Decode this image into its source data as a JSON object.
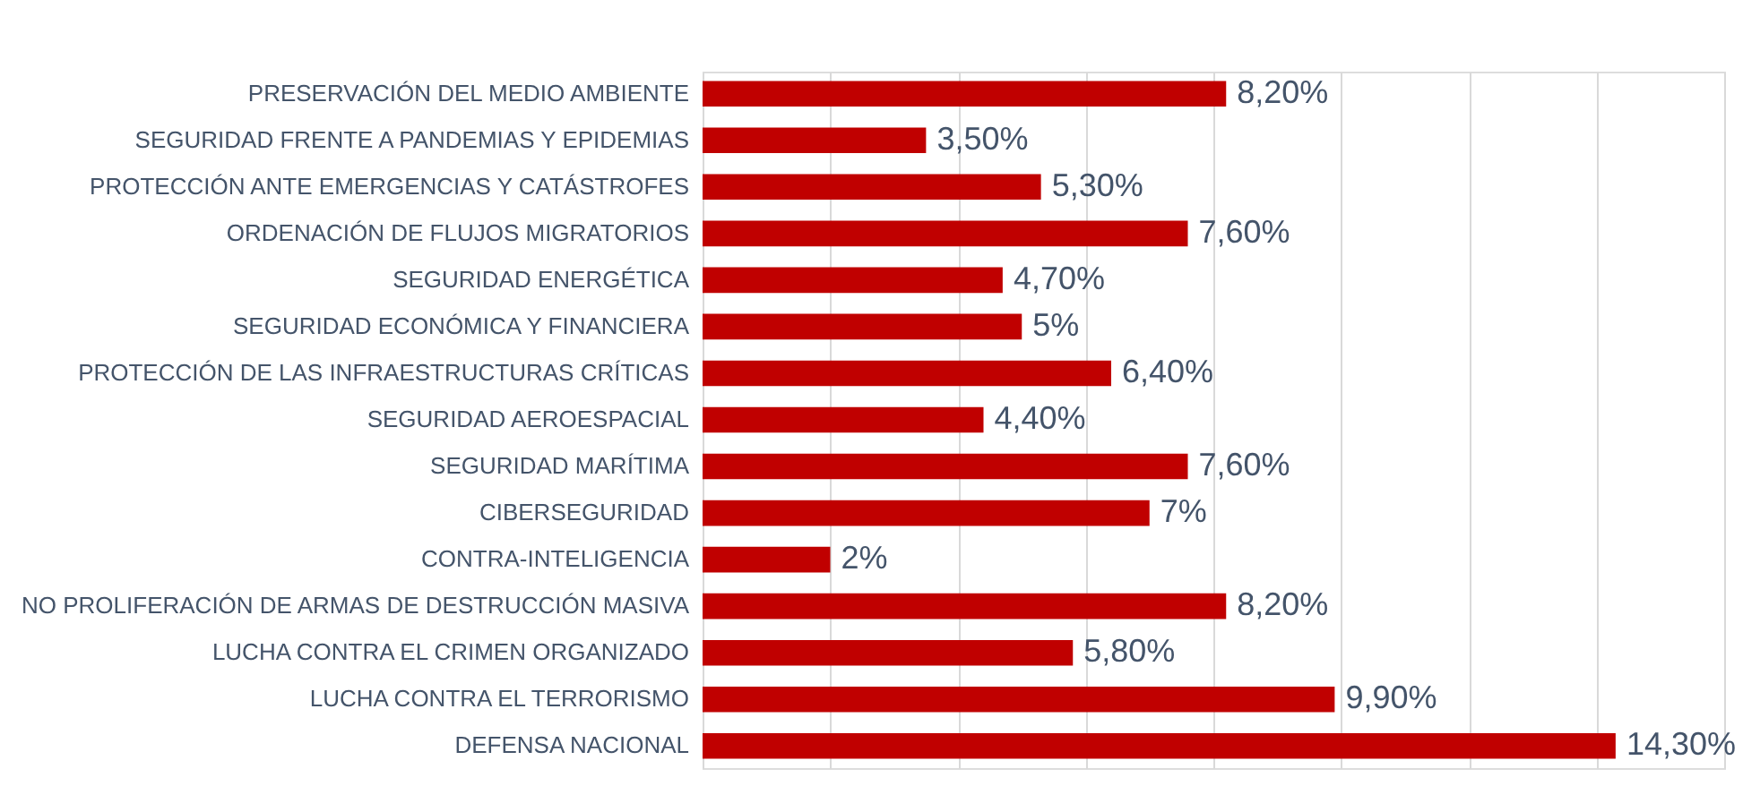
{
  "chart_data": {
    "type": "bar",
    "orientation": "horizontal",
    "categories": [
      "PRESERVACIÓN DEL MEDIO AMBIENTE",
      "SEGURIDAD FRENTE A PANDEMIAS Y EPIDEMIAS",
      "PROTECCIÓN ANTE EMERGENCIAS Y CATÁSTROFES",
      "ORDENACIÓN DE FLUJOS MIGRATORIOS",
      "SEGURIDAD ENERGÉTICA",
      "SEGURIDAD ECONÓMICA Y FINANCIERA",
      "PROTECCIÓN DE LAS INFRAESTRUCTURAS CRÍTICAS",
      "SEGURIDAD AEROESPACIAL",
      "SEGURIDAD MARÍTIMA",
      "CIBERSEGURIDAD",
      "CONTRA-INTELIGENCIA",
      "NO PROLIFERACIÓN DE ARMAS DE DESTRUCCIÓN MASIVA",
      "LUCHA CONTRA EL CRIMEN ORGANIZADO",
      "LUCHA CONTRA EL TERRORISMO",
      "DEFENSA NACIONAL"
    ],
    "values": [
      8.2,
      3.5,
      5.3,
      7.6,
      4.7,
      5,
      6.4,
      4.4,
      7.6,
      7,
      2,
      8.2,
      5.8,
      9.9,
      14.3
    ],
    "value_labels": [
      "8,20%",
      "3,50%",
      "5,30%",
      "7,60%",
      "4,70%",
      "5%",
      "6,40%",
      "4,40%",
      "7,60%",
      "7%",
      "2%",
      "8,20%",
      "5,80%",
      "9,90%",
      "14,30%"
    ],
    "color": "#c00000",
    "xlim": [
      0,
      16
    ],
    "xticks": [
      {
        "value": 0,
        "label": null
      },
      {
        "value": 2,
        "label": null
      },
      {
        "value": 4,
        "label": null
      },
      {
        "value": 6,
        "label": null
      },
      {
        "value": 8,
        "label": null
      },
      {
        "value": 10,
        "label": null
      },
      {
        "value": 12,
        "label": null
      },
      {
        "value": 14,
        "label": null
      },
      {
        "value": 16,
        "label": null
      }
    ],
    "grid": "x",
    "tick_labels": "y"
  }
}
